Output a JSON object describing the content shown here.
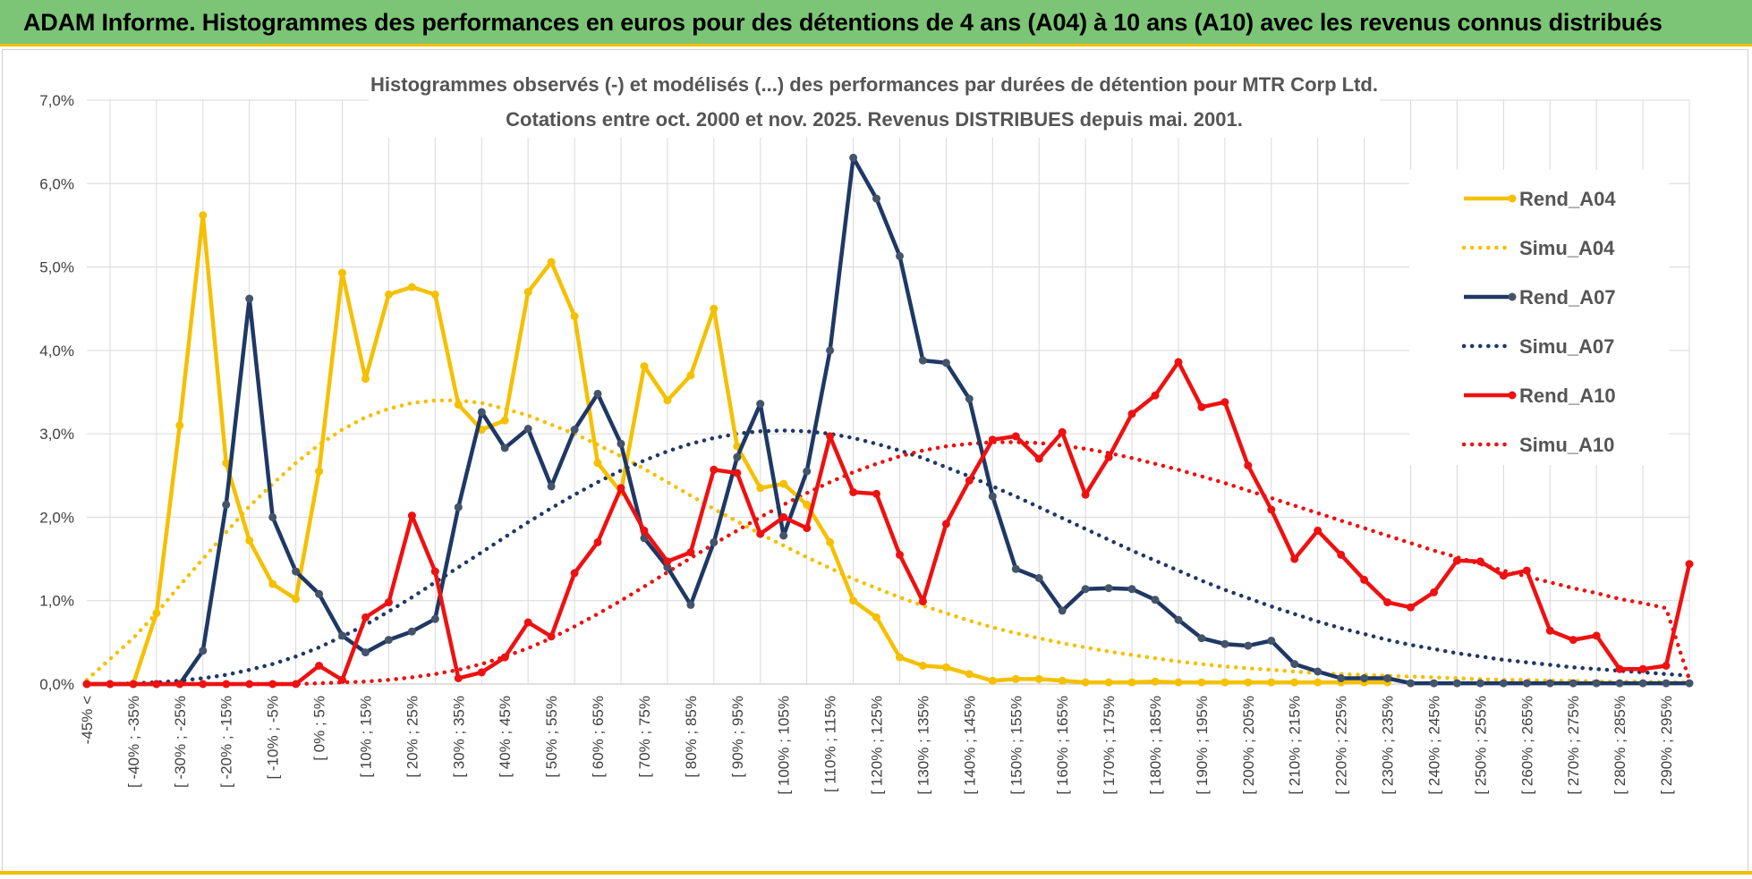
{
  "banner": {
    "title": "ADAM Informe. Histogrammes des performances en euros pour des détentions de 4 ans (A04) à 10 ans (A10) avec les revenus connus distribués",
    "background": "#7cc576",
    "accent": "#f0c000"
  },
  "chart_data": {
    "type": "line",
    "title": "Histogrammes observés (-) et modélisés (...) des performances par durées de détention pour MTR Corp Ltd.",
    "subtitle": "Cotations entre oct. 2000 et nov. 2025.  Revenus DISTRIBUES depuis mai. 2001.",
    "xlabel": "",
    "ylabel": "",
    "ylim": [
      0,
      7
    ],
    "y_ticks": [
      "0,0%",
      "1,0%",
      "2,0%",
      "3,0%",
      "4,0%",
      "5,0%",
      "6,0%",
      "7,0%"
    ],
    "grid": true,
    "legend_position": "top-right",
    "categories": [
      "-45% <",
      "[ -45% ; -40%",
      "[ -40% ; -35%",
      "[ -35% ; -30%",
      "[ -30% ; -25%",
      "[ -25% ; -20%",
      "[ -20% ; -15%",
      "[ -15% ; -10%",
      "[ -10% ; -5%",
      "[ -5% ; 0%",
      "[ 0% ; 5%",
      "[ 5% ; 10%",
      "[ 10% ; 15%",
      "[ 15% ; 20%",
      "[ 20% ; 25%",
      "[ 25% ; 30%",
      "[ 30% ; 35%",
      "[ 35% ; 40%",
      "[ 40% ; 45%",
      "[ 45% ; 50%",
      "[ 50% ; 55%",
      "[ 55% ; 60%",
      "[ 60% ; 65%",
      "[ 65% ; 70%",
      "[ 70% ; 75%",
      "[ 75% ; 80%",
      "[ 80% ; 85%",
      "[ 85% ; 90%",
      "[ 90% ; 95%",
      "[ 95% ; 100%",
      "[ 100% ; 105%",
      "[ 105% ; 110%",
      "[ 110% ; 115%",
      "[ 115% ; 120%",
      "[ 120% ; 125%",
      "[ 125% ; 130%",
      "[ 130% ; 135%",
      "[ 135% ; 140%",
      "[ 140% ; 145%",
      "[ 145% ; 150%",
      "[ 150% ; 155%",
      "[ 155% ; 160%",
      "[ 160% ; 165%",
      "[ 165% ; 170%",
      "[ 170% ; 175%",
      "[ 175% ; 180%",
      "[ 180% ; 185%",
      "[ 185% ; 190%",
      "[ 190% ; 195%",
      "[ 195% ; 200%",
      "[ 200% ; 205%",
      "[ 205% ; 210%",
      "[ 210% ; 215%",
      "[ 215% ; 220%",
      "[ 220% ; 225%",
      "[ 225% ; 230%",
      "[ 230% ; 235%",
      "[ 235% ; 240%",
      "[ 240% ; 245%",
      "[ 245% ; 250%",
      "[ 250% ; 255%",
      "[ 255% ; 260%",
      "[ 260% ; 265%",
      "[ 265% ; 270%",
      "[ 270% ; 275%",
      "[ 275% ; 280%",
      "[ 280% ; 285%",
      "[ 285% ; 290%",
      "[ 290% ; 295%",
      "[ 295% ; 300%"
    ],
    "visible_tick_indices": [
      0,
      2,
      4,
      6,
      8,
      10,
      12,
      14,
      16,
      18,
      20,
      22,
      24,
      26,
      28,
      30,
      32,
      34,
      36,
      38,
      40,
      42,
      44,
      46,
      48,
      50,
      52,
      54,
      56,
      58,
      60,
      62,
      64,
      66,
      68
    ],
    "series": [
      {
        "name": "Rend_A04",
        "style": "solid",
        "color": "#f5c000",
        "values": [
          0,
          0,
          0,
          0.85,
          3.1,
          5.62,
          2.65,
          1.72,
          1.2,
          1.02,
          2.55,
          4.93,
          3.66,
          4.67,
          4.76,
          4.67,
          3.35,
          3.05,
          3.16,
          4.7,
          5.06,
          4.41,
          2.65,
          2.3,
          3.81,
          3.4,
          3.7,
          4.5,
          2.85,
          2.35,
          2.4,
          2.15,
          1.7,
          1.0,
          0.8,
          0.32,
          0.22,
          0.2,
          0.12,
          0.04,
          0.06,
          0.06,
          0.04,
          0.02,
          0.02,
          0.02,
          0.03,
          0.02,
          0.02,
          0.02,
          0.02,
          0.02,
          0.02,
          0.02,
          0.02,
          0.02,
          0.02,
          null,
          null,
          null,
          null,
          null,
          null,
          null,
          null,
          null,
          null,
          null,
          null,
          null
        ]
      },
      {
        "name": "Simu_A04",
        "style": "dotted",
        "color": "#f5c000",
        "values": [
          0.05,
          0.3,
          0.55,
          0.85,
          1.18,
          1.5,
          1.82,
          2.13,
          2.4,
          2.65,
          2.87,
          3.05,
          3.2,
          3.3,
          3.37,
          3.4,
          3.4,
          3.37,
          3.3,
          3.22,
          3.11,
          3.0,
          2.87,
          2.73,
          2.58,
          2.42,
          2.26,
          2.1,
          1.95,
          1.8,
          1.66,
          1.52,
          1.39,
          1.26,
          1.15,
          1.04,
          0.94,
          0.85,
          0.76,
          0.68,
          0.61,
          0.55,
          0.49,
          0.44,
          0.39,
          0.35,
          0.31,
          0.27,
          0.24,
          0.21,
          0.19,
          0.17,
          0.15,
          0.13,
          0.12,
          0.11,
          0.1,
          0.09,
          0.08,
          0.07,
          0.06,
          0.05,
          0.05,
          0.04,
          0.04,
          0.03,
          0.03,
          0.03,
          0.02,
          0.02
        ]
      },
      {
        "name": "Rend_A07",
        "style": "solid",
        "color": "#1f3864",
        "values": [
          0,
          0,
          0,
          0,
          0,
          0.4,
          2.15,
          4.62,
          2.0,
          1.35,
          1.08,
          0.58,
          0.38,
          0.53,
          0.63,
          0.78,
          2.12,
          3.26,
          2.83,
          3.06,
          2.37,
          3.05,
          3.48,
          2.88,
          1.75,
          1.4,
          0.95,
          1.7,
          2.72,
          3.36,
          1.78,
          2.55,
          4.0,
          6.31,
          5.82,
          5.13,
          3.88,
          3.85,
          3.42,
          2.25,
          1.38,
          1.27,
          0.88,
          1.14,
          1.15,
          1.14,
          1.01,
          0.77,
          0.55,
          0.48,
          0.46,
          0.52,
          0.24,
          0.15,
          0.07,
          0.07,
          0.07,
          0.01,
          0.01,
          0.01,
          0.01,
          0.01,
          0.01,
          0.01,
          0.01,
          0.01,
          0.01,
          0.01,
          0.01,
          0.01
        ]
      },
      {
        "name": "Simu_A07",
        "style": "dotted",
        "color": "#1f3864",
        "values": [
          0.0,
          0.0,
          0.01,
          0.02,
          0.04,
          0.07,
          0.11,
          0.17,
          0.24,
          0.33,
          0.44,
          0.57,
          0.71,
          0.87,
          1.04,
          1.22,
          1.4,
          1.58,
          1.76,
          1.94,
          2.11,
          2.27,
          2.42,
          2.56,
          2.68,
          2.79,
          2.88,
          2.95,
          3.0,
          3.03,
          3.04,
          3.03,
          3.0,
          2.95,
          2.88,
          2.8,
          2.71,
          2.6,
          2.49,
          2.37,
          2.25,
          2.12,
          1.99,
          1.86,
          1.73,
          1.6,
          1.48,
          1.36,
          1.24,
          1.13,
          1.03,
          0.93,
          0.84,
          0.75,
          0.67,
          0.6,
          0.53,
          0.47,
          0.42,
          0.37,
          0.33,
          0.29,
          0.26,
          0.23,
          0.2,
          0.18,
          0.16,
          0.14,
          0.12,
          0.1
        ]
      },
      {
        "name": "Rend_A10",
        "style": "solid",
        "color": "#ee1111",
        "values": [
          0,
          0,
          0,
          0,
          0,
          0,
          0,
          0,
          0,
          0,
          0.22,
          0.05,
          0.8,
          0.98,
          2.02,
          1.35,
          0.07,
          0.14,
          0.32,
          0.74,
          0.57,
          1.33,
          1.7,
          2.35,
          1.84,
          1.47,
          1.58,
          2.57,
          2.53,
          1.8,
          2.0,
          1.87,
          2.97,
          2.3,
          2.28,
          1.55,
          0.99,
          1.92,
          2.44,
          2.93,
          2.97,
          2.7,
          3.02,
          2.27,
          2.72,
          3.24,
          3.46,
          3.86,
          3.32,
          3.38,
          2.62,
          2.09,
          1.5,
          1.84,
          1.55,
          1.25,
          0.98,
          0.92,
          1.1,
          1.48,
          1.47,
          1.3,
          1.36,
          0.64,
          0.53,
          0.58,
          0.18,
          0.18,
          0.22,
          1.44
        ]
      },
      {
        "name": "Simu_A10",
        "style": "dotted",
        "color": "#ee1111",
        "values": [
          0.0,
          0.0,
          0.0,
          0.0,
          0.0,
          0.0,
          0.0,
          0.0,
          0.0,
          0.0,
          0.01,
          0.02,
          0.03,
          0.05,
          0.08,
          0.12,
          0.17,
          0.24,
          0.33,
          0.43,
          0.55,
          0.69,
          0.84,
          1.0,
          1.17,
          1.34,
          1.51,
          1.68,
          1.84,
          2.0,
          2.15,
          2.29,
          2.42,
          2.54,
          2.64,
          2.73,
          2.8,
          2.85,
          2.88,
          2.9,
          2.9,
          2.89,
          2.86,
          2.82,
          2.77,
          2.71,
          2.64,
          2.57,
          2.49,
          2.41,
          2.32,
          2.23,
          2.14,
          2.05,
          1.96,
          1.87,
          1.78,
          1.69,
          1.6,
          1.52,
          1.44,
          1.36,
          1.29,
          1.22,
          1.15,
          1.09,
          1.02,
          0.97,
          0.91,
          0.05
        ]
      }
    ]
  }
}
